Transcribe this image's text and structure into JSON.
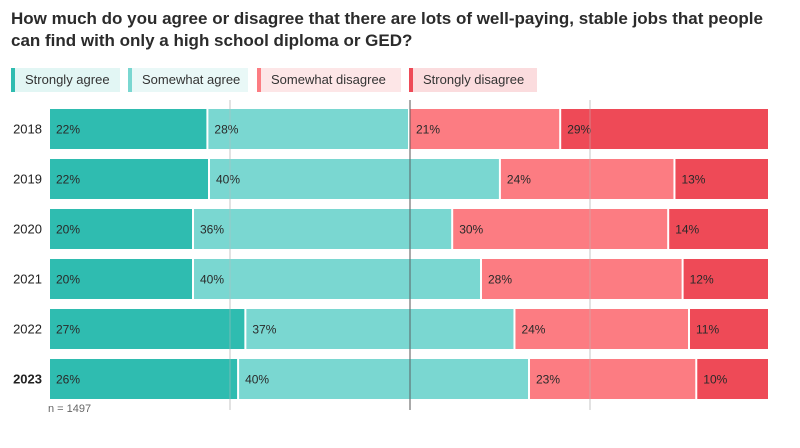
{
  "chart_data": {
    "type": "bar",
    "orientation": "horizontal",
    "stacked": true,
    "diverging": true,
    "title": "How much do you agree or disagree that there are lots of well-paying, stable jobs that people can find with only a high school diploma or GED?",
    "categories": [
      "2018",
      "2019",
      "2020",
      "2021",
      "2022",
      "2023"
    ],
    "highlight_category": "2023",
    "series": [
      {
        "name": "Strongly agree",
        "color": "#2fbcb0",
        "bg": "#e2f6f4",
        "values": [
          22,
          22,
          20,
          20,
          27,
          26
        ]
      },
      {
        "name": "Somewhat agree",
        "color": "#7ad7d1",
        "bg": "#e9f8f7",
        "values": [
          28,
          40,
          36,
          40,
          37,
          40
        ]
      },
      {
        "name": "Somewhat disagree",
        "color": "#fc7c82",
        "bg": "#fde6e7",
        "values": [
          21,
          24,
          30,
          28,
          24,
          23
        ]
      },
      {
        "name": "Strongly disagree",
        "color": "#ee4a57",
        "bg": "#fbdcde",
        "values": [
          29,
          13,
          14,
          12,
          11,
          10
        ]
      }
    ],
    "note": "n = 1497"
  }
}
